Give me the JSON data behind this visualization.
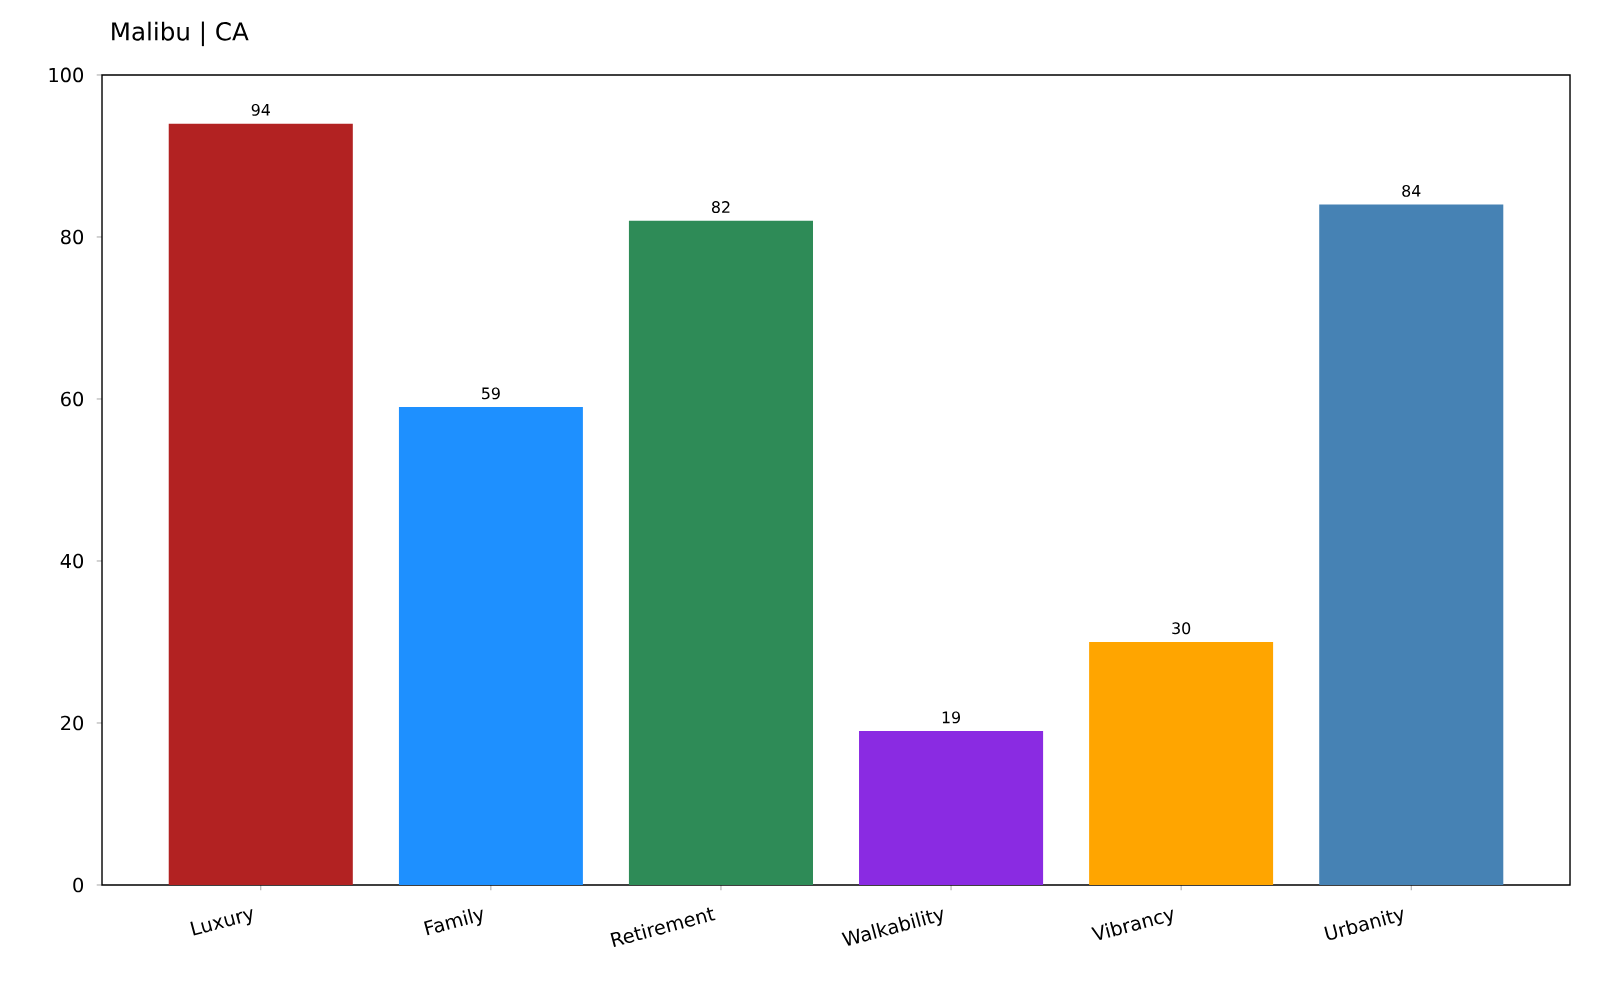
{
  "chart_data": {
    "type": "bar",
    "title": "Malibu | CA",
    "categories": [
      "Luxury",
      "Family",
      "Retirement",
      "Walkability",
      "Vibrancy",
      "Urbanity"
    ],
    "values": [
      94,
      59,
      82,
      19,
      30,
      84
    ],
    "colors": [
      "#b22222",
      "#1e90ff",
      "#2e8b57",
      "#8a2be2",
      "#ffa500",
      "#4682b4"
    ],
    "ylim": [
      0,
      100
    ],
    "yticks": [
      0,
      20,
      40,
      60,
      80,
      100
    ],
    "data_labels": true
  }
}
